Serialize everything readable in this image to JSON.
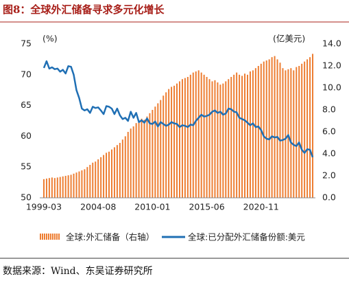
{
  "chart_data": {
    "type": "combo",
    "title": "图8：全球外汇储备寻求多元化增长",
    "y_unit": "(%)",
    "y2_unit": "(亿美元)",
    "categories": [
      "1999-03",
      null,
      null,
      null,
      null,
      null,
      null,
      null,
      null,
      null,
      null,
      null,
      null,
      null,
      null,
      null,
      null,
      null,
      null,
      null,
      "2004-08",
      null,
      null,
      null,
      null,
      null,
      null,
      null,
      null,
      null,
      null,
      null,
      null,
      null,
      null,
      null,
      null,
      null,
      null,
      null,
      "2010-01",
      null,
      null,
      null,
      null,
      null,
      null,
      null,
      null,
      null,
      null,
      null,
      null,
      null,
      null,
      null,
      null,
      null,
      null,
      null,
      "2015-06",
      null,
      null,
      null,
      null,
      null,
      null,
      null,
      null,
      null,
      null,
      null,
      null,
      null,
      null,
      null,
      null,
      null,
      null,
      null,
      "2020-11",
      null,
      null,
      null,
      null,
      null,
      null,
      null,
      null,
      null,
      null,
      null,
      null,
      null,
      null,
      null,
      null,
      null,
      null,
      null
    ],
    "series": [
      {
        "name": "全球:外汇储备（右轴）",
        "type": "bar",
        "axis": "y2",
        "color": "#ed7d31",
        "values": [
          1.7,
          1.75,
          1.8,
          1.85,
          1.8,
          1.85,
          1.9,
          1.95,
          2.0,
          2.05,
          2.1,
          2.2,
          2.3,
          2.4,
          2.5,
          2.6,
          2.8,
          3.0,
          3.2,
          3.3,
          3.5,
          3.7,
          3.9,
          4.1,
          4.2,
          4.4,
          4.6,
          4.8,
          5.0,
          5.3,
          5.6,
          6.0,
          6.3,
          6.5,
          6.8,
          7.0,
          7.2,
          7.1,
          7.4,
          7.7,
          8.0,
          8.3,
          8.6,
          8.9,
          9.3,
          9.6,
          9.9,
          10.1,
          10.2,
          10.4,
          10.6,
          10.8,
          10.9,
          11.0,
          11.2,
          11.4,
          11.5,
          11.6,
          11.4,
          11.2,
          11.0,
          10.8,
          10.6,
          10.7,
          10.5,
          10.3,
          10.4,
          10.6,
          10.8,
          11.0,
          11.2,
          11.4,
          11.2,
          11.1,
          11.3,
          11.2,
          11.5,
          11.6,
          11.8,
          12.0,
          12.2,
          12.4,
          12.5,
          12.6,
          12.8,
          12.9,
          12.6,
          12.3,
          11.8,
          11.6,
          11.7,
          11.8,
          11.6,
          11.9,
          12.0,
          12.2,
          12.4,
          12.6,
          12.8,
          13.1
        ]
      },
      {
        "name": "全球:已分配外汇储备份额:美元",
        "type": "line",
        "color": "#1f6fb4",
        "values": [
          71.1,
          72.2,
          71.0,
          71.2,
          70.9,
          71.0,
          70.5,
          70.8,
          70.2,
          71.4,
          71.3,
          70.0,
          67.5,
          66.2,
          64.5,
          64.2,
          64.4,
          63.8,
          64.8,
          64.6,
          64.7,
          64.2,
          63.6,
          64.9,
          64.8,
          64.5,
          63.6,
          64.5,
          63.4,
          62.8,
          63.0,
          62.5,
          64.0,
          63.0,
          63.8,
          62.3,
          62.6,
          62.2,
          62.9,
          62.1,
          62.0,
          62.4,
          61.6,
          62.3,
          62.0,
          61.7,
          61.9,
          62.3,
          62.1,
          62.0,
          61.5,
          61.8,
          61.7,
          61.5,
          61.9,
          61.8,
          62.5,
          63.0,
          63.5,
          63.2,
          63.3,
          63.5,
          64.0,
          64.2,
          63.8,
          64.0,
          63.5,
          63.7,
          64.5,
          64.4,
          64.0,
          63.9,
          63.0,
          62.8,
          62.6,
          62.2,
          61.8,
          62.1,
          61.5,
          61.6,
          61.0,
          60.0,
          59.6,
          59.5,
          60.0,
          59.8,
          59.9,
          59.3,
          59.4,
          59.6,
          60.2,
          59.0,
          58.6,
          58.4,
          59.0,
          57.8,
          57.3,
          57.9,
          57.8,
          56.6
        ]
      }
    ],
    "ylim": [
      50,
      75
    ],
    "yticks": [
      50,
      55,
      60,
      65,
      70,
      75
    ],
    "y2lim": [
      0,
      14
    ],
    "y2ticks": [
      {
        "value": 0,
        "label": "0.0"
      },
      {
        "value": 2,
        "label": "2.0"
      },
      {
        "value": 4,
        "label": "4.0"
      },
      {
        "value": 6,
        "label": "6.0"
      },
      {
        "value": 8,
        "label": "8.0"
      },
      {
        "value": 10,
        "label": "10.0"
      },
      {
        "value": 12,
        "label": "12.0"
      },
      {
        "value": 14,
        "label": "14.0"
      }
    ],
    "source": "数据来源：Wind、东吴证券研究所"
  }
}
